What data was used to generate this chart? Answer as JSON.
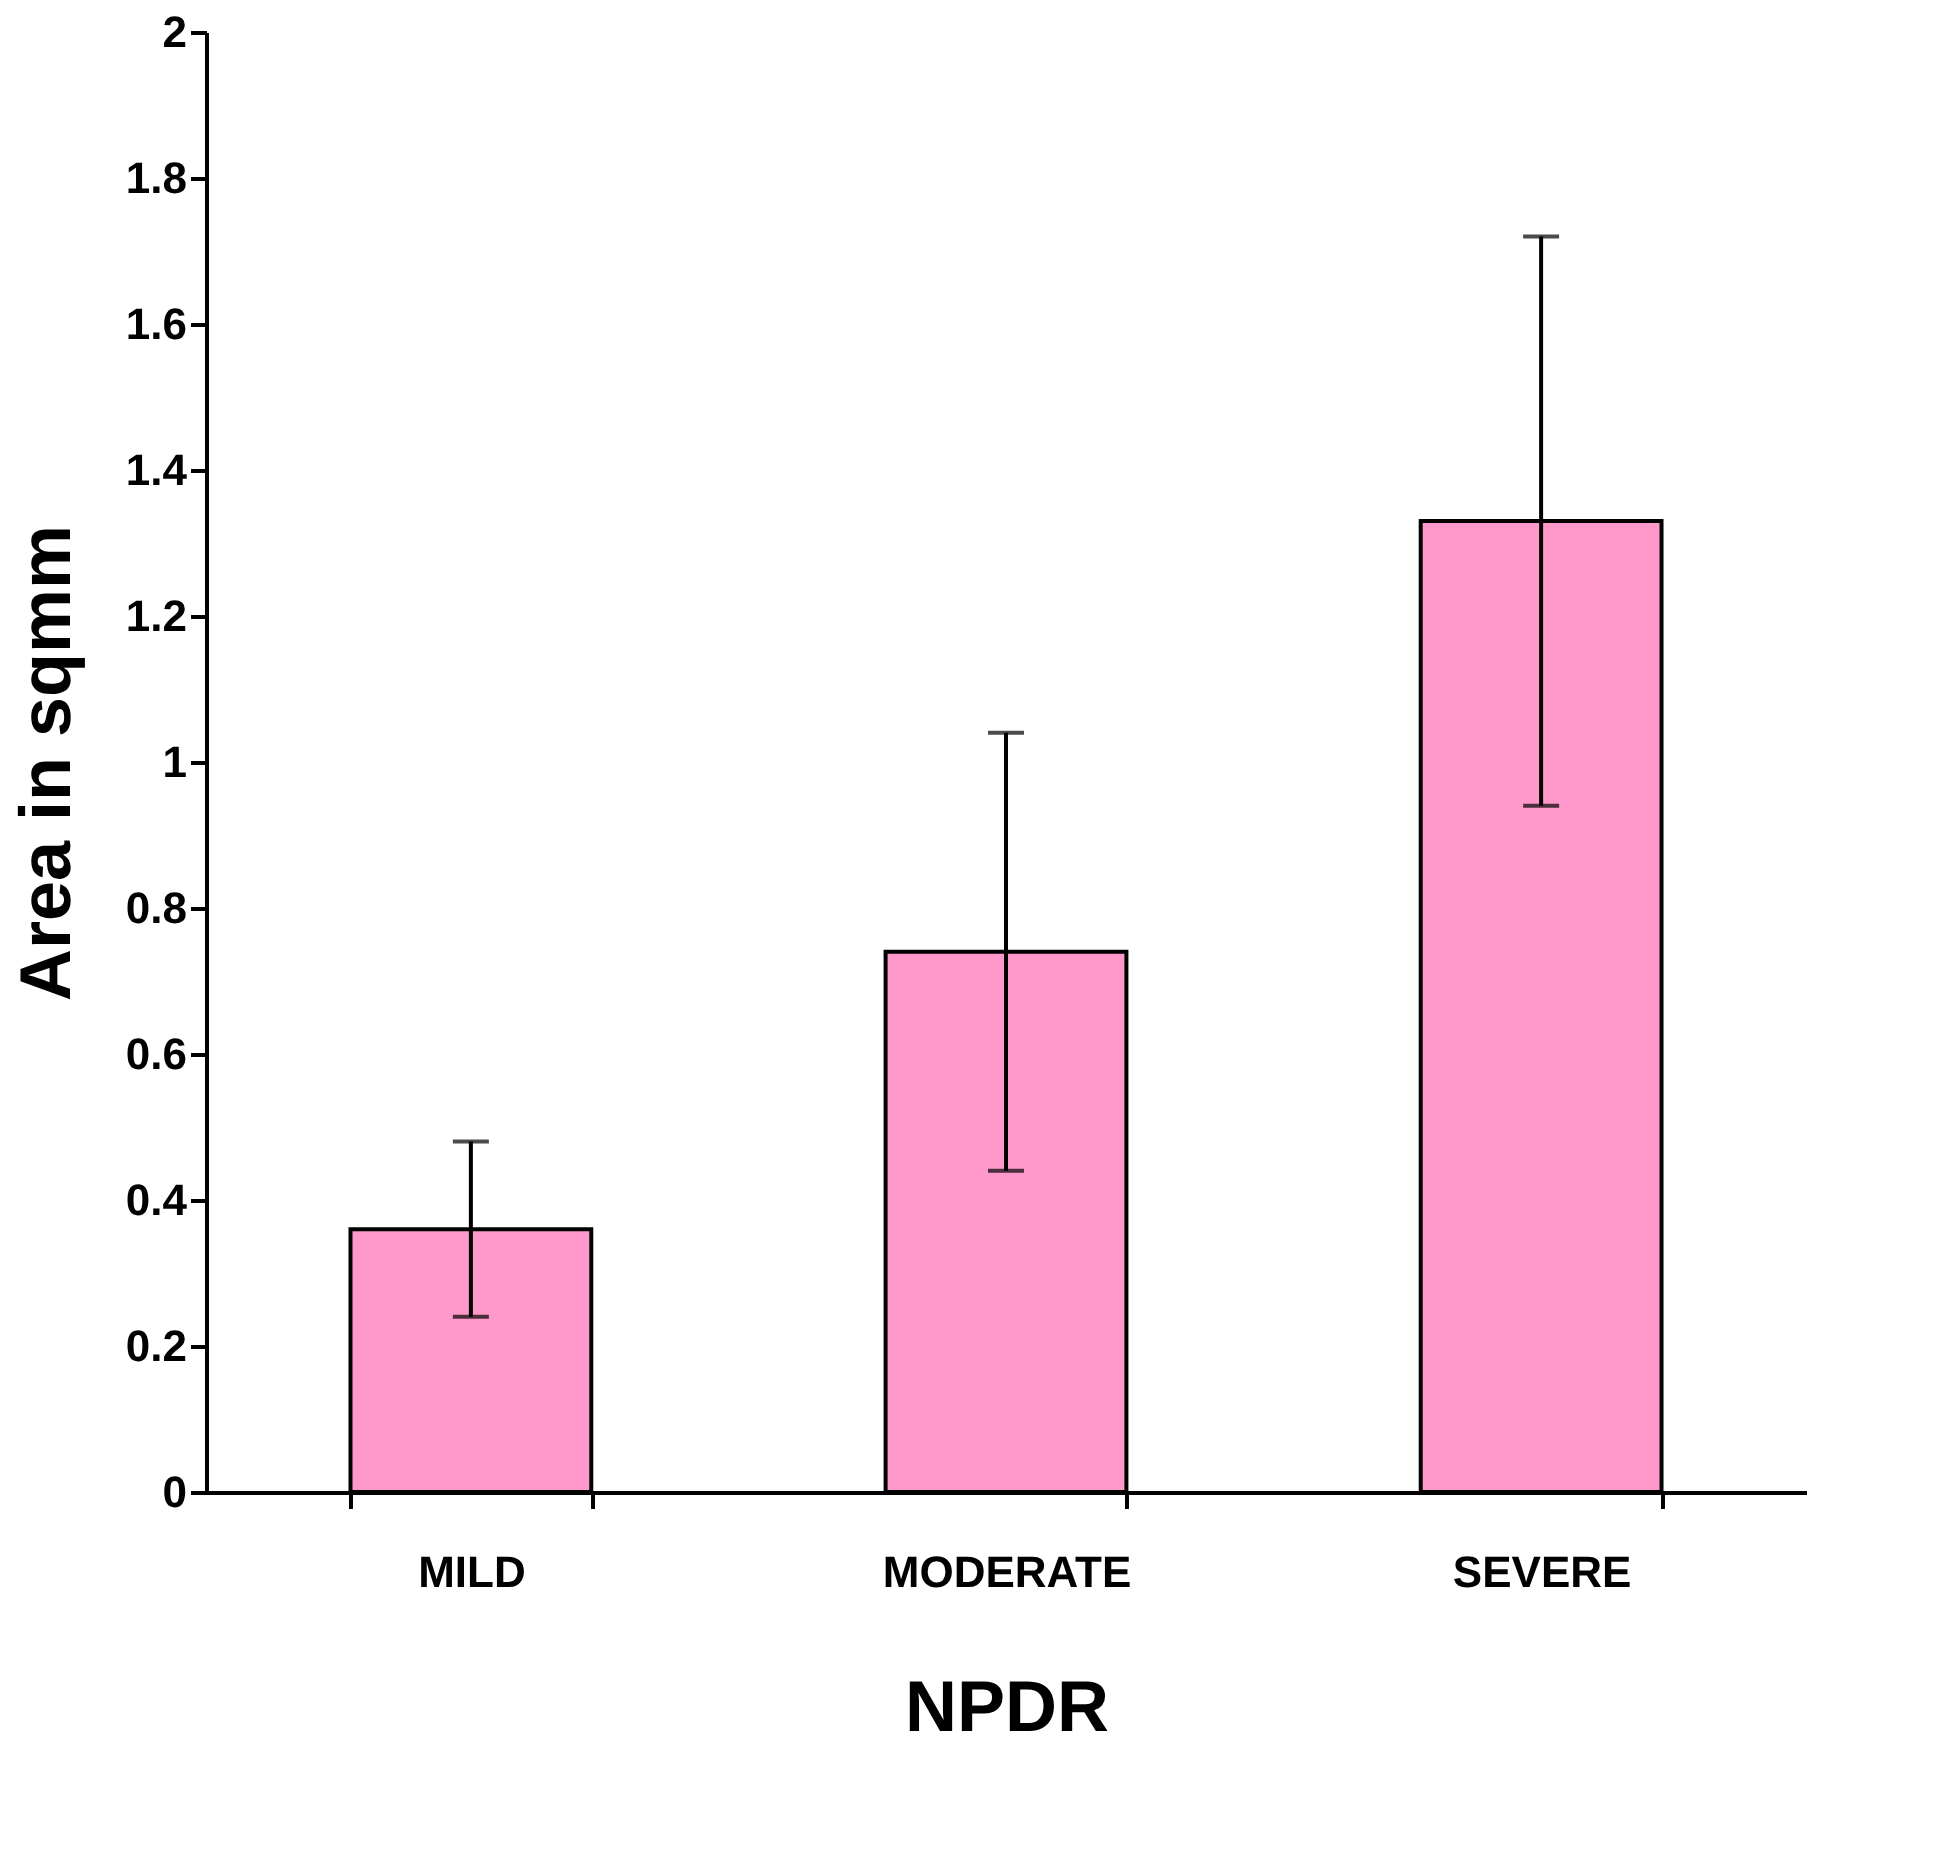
{
  "chart_data": {
    "type": "bar",
    "xlabel": "NPDR",
    "ylabel": "Area in sqmm",
    "categories": [
      "MILD",
      "MODERATE",
      "SEVERE"
    ],
    "values": [
      0.36,
      0.74,
      1.33
    ],
    "errors": [
      0.12,
      0.3,
      0.39
    ],
    "color": "#ff99cc",
    "ylim": [
      0,
      2
    ],
    "yticks": [
      0,
      0.2,
      0.4,
      0.6,
      0.8,
      1,
      1.2,
      1.4,
      1.6,
      1.8,
      2
    ],
    "grid": false
  }
}
